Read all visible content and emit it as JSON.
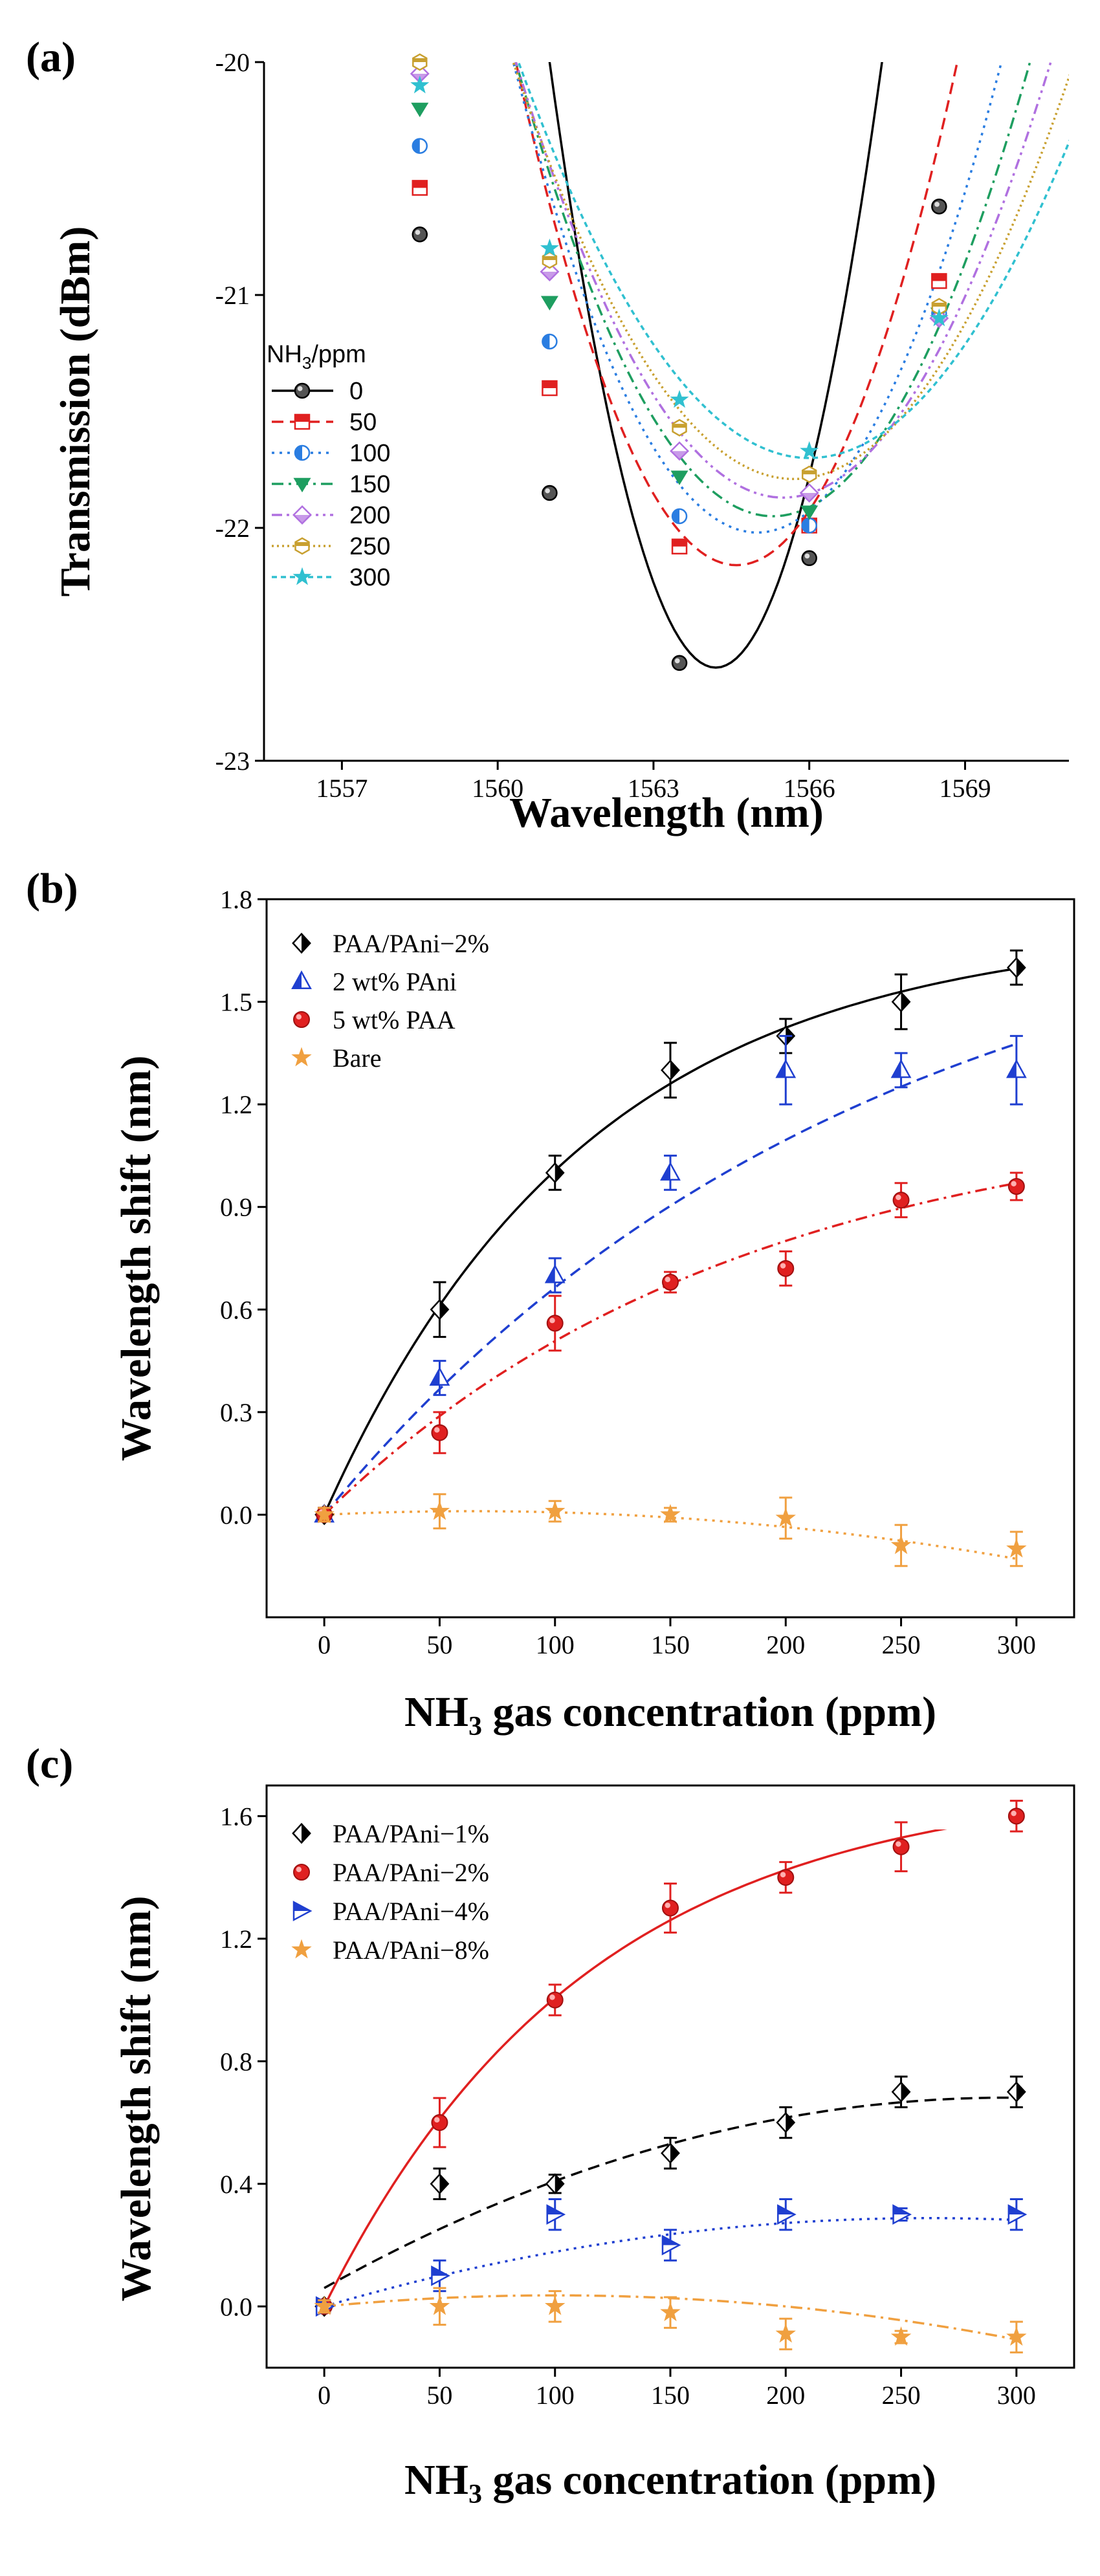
{
  "chart_data": [
    {
      "panel": "(a)",
      "type": "line",
      "xlabel": "Wavelength (nm)",
      "ylabel": "Transmission (dBm)",
      "xlim": [
        1555.5,
        1571
      ],
      "ylim": [
        -23,
        -20
      ],
      "xticks": [
        1557,
        1560,
        1563,
        1566,
        1569
      ],
      "yticks": [
        -20,
        -21,
        -22,
        -23
      ],
      "legend_title": "NH3/ppm",
      "legend_title_main": "NH",
      "legend_title_sub": "3",
      "legend_title_rest": "/ppm",
      "legend_position": "left",
      "series": [
        {
          "name": "0",
          "color": "#000000",
          "marker": "circle",
          "dash": "solid",
          "min_x": 1564.2,
          "min_y": -22.6,
          "width": 6.4,
          "points": [
            [
              1558.5,
              -20.74
            ],
            [
              1561,
              -21.85
            ],
            [
              1563.5,
              -22.58
            ],
            [
              1566,
              -22.13
            ],
            [
              1568.5,
              -20.62
            ]
          ]
        },
        {
          "name": "50",
          "color": "#e02020",
          "marker": "square",
          "dash": "dashed",
          "min_x": 1564.6,
          "min_y": -22.16,
          "width": 8.5,
          "points": [
            [
              1558.5,
              -20.54
            ],
            [
              1561,
              -21.4
            ],
            [
              1563.5,
              -22.08
            ],
            [
              1566,
              -21.99
            ],
            [
              1568.5,
              -20.94
            ]
          ]
        },
        {
          "name": "100",
          "color": "#2a7de1",
          "marker": "halfcircle",
          "dash": "dotted",
          "min_x": 1565.0,
          "min_y": -22.02,
          "width": 9.4,
          "points": [
            [
              1558.5,
              -20.36
            ],
            [
              1561,
              -21.2
            ],
            [
              1563.5,
              -21.95
            ],
            [
              1566,
              -21.99
            ],
            [
              1568.5,
              -21.08
            ]
          ]
        },
        {
          "name": "150",
          "color": "#1e9e60",
          "marker": "tri-down",
          "dash": "dashdot",
          "min_x": 1565.3,
          "min_y": -21.95,
          "width": 9.9,
          "points": [
            [
              1558.5,
              -20.2
            ],
            [
              1561,
              -21.03
            ],
            [
              1563.5,
              -21.78
            ],
            [
              1566,
              -21.93
            ],
            [
              1568.5,
              -21.08
            ]
          ]
        },
        {
          "name": "200",
          "color": "#b070e0",
          "marker": "diamond",
          "dash": "dashdotdot",
          "min_x": 1565.5,
          "min_y": -21.87,
          "width": 10.3,
          "points": [
            [
              1558.5,
              -20.05
            ],
            [
              1561,
              -20.9
            ],
            [
              1563.5,
              -21.67
            ],
            [
              1566,
              -21.85
            ],
            [
              1568.5,
              -21.1
            ]
          ]
        },
        {
          "name": "250",
          "color": "#c8a030",
          "marker": "hexagon",
          "dash": "shortdot",
          "min_x": 1565.7,
          "min_y": -21.79,
          "width": 10.8,
          "points": [
            [
              1558.5,
              -20.0
            ],
            [
              1561,
              -20.85
            ],
            [
              1563.5,
              -21.57
            ],
            [
              1566,
              -21.77
            ],
            [
              1568.5,
              -21.05
            ]
          ]
        },
        {
          "name": "300",
          "color": "#30c0d0",
          "marker": "star",
          "dash": "shortdash",
          "min_x": 1566.0,
          "min_y": -21.7,
          "width": 11.2,
          "points": [
            [
              1558.5,
              -20.1
            ],
            [
              1561,
              -20.8
            ],
            [
              1563.5,
              -21.45
            ],
            [
              1566,
              -21.67
            ],
            [
              1568.5,
              -21.1
            ]
          ]
        }
      ]
    },
    {
      "panel": "(b)",
      "type": "scatter",
      "xlabel_main": "NH",
      "xlabel_sub": "3",
      "xlabel_rest": " gas concentration (ppm)",
      "xlabel": "NH3 gas concentration (ppm)",
      "ylabel": "Wavelength shift (nm)",
      "xlim": [
        -25,
        325
      ],
      "ylim": [
        -0.3,
        1.8
      ],
      "xticks": [
        0,
        50,
        100,
        150,
        200,
        250,
        300
      ],
      "yticks": [
        "0.0",
        "0.3",
        "0.6",
        "0.9",
        "1.2",
        "1.5",
        "1.8"
      ],
      "legend_position": "top-left",
      "series": [
        {
          "name": "PAA/PAni−2%",
          "color": "#000000",
          "marker": "halfdiamond",
          "dash": "solid",
          "x": [
            0,
            50,
            100,
            150,
            200,
            250,
            300
          ],
          "values": [
            0,
            0.6,
            1.0,
            1.3,
            1.4,
            1.5,
            1.6
          ],
          "errors": [
            0.02,
            0.08,
            0.05,
            0.08,
            0.05,
            0.08,
            0.05
          ],
          "fit": {
            "a": 1.72,
            "b": 0.0088
          }
        },
        {
          "name": "2 wt% PAni",
          "color": "#1f3fd0",
          "marker": "halftriangle",
          "dash": "dashed",
          "x": [
            0,
            50,
            100,
            150,
            200,
            250,
            300
          ],
          "values": [
            0,
            0.4,
            0.7,
            1.0,
            1.3,
            1.3,
            1.3
          ],
          "errors": [
            0.02,
            0.05,
            0.05,
            0.05,
            0.1,
            0.05,
            0.1
          ],
          "fit": {
            "a": 1.9,
            "b": 0.0043
          }
        },
        {
          "name": "5 wt% PAA",
          "color": "#e02020",
          "marker": "ball",
          "dash": "dashdot",
          "x": [
            0,
            50,
            100,
            150,
            200,
            250,
            300
          ],
          "values": [
            0,
            0.24,
            0.56,
            0.68,
            0.72,
            0.92,
            0.96
          ],
          "errors": [
            0.02,
            0.06,
            0.08,
            0.03,
            0.05,
            0.05,
            0.04
          ],
          "fit": {
            "a": 1.2,
            "b": 0.0055
          }
        },
        {
          "name": "Bare",
          "color": "#f0a040",
          "marker": "star",
          "dash": "dotted",
          "x": [
            0,
            50,
            100,
            150,
            200,
            250,
            300
          ],
          "values": [
            0,
            0.01,
            0.01,
            0.0,
            -0.01,
            -0.09,
            -0.1
          ],
          "errors": [
            0.02,
            0.05,
            0.03,
            0.02,
            0.06,
            0.06,
            0.05
          ],
          "fit": {
            "poly": [
              0,
              0.00032,
              -2.5e-06
            ]
          }
        }
      ]
    },
    {
      "panel": "(c)",
      "type": "scatter",
      "xlabel": "NH3 gas concentration (ppm)",
      "xlabel_main": "NH",
      "xlabel_sub": "3",
      "xlabel_rest": " gas concentration (ppm)",
      "ylabel": "Wavelength shift (nm)",
      "xlim": [
        -25,
        325
      ],
      "ylim": [
        -0.2,
        1.7
      ],
      "xticks": [
        0,
        50,
        100,
        150,
        200,
        250,
        300
      ],
      "yticks": [
        "0.0",
        "0.4",
        "0.8",
        "1.2",
        "1.6"
      ],
      "legend_position": "top-left",
      "series": [
        {
          "name": "PAA/PAni−1%",
          "color": "#000000",
          "marker": "halfdiamond",
          "dash": "dashed",
          "x": [
            0,
            50,
            100,
            150,
            200,
            250,
            300
          ],
          "values": [
            0,
            0.4,
            0.4,
            0.5,
            0.6,
            0.7,
            0.7
          ],
          "errors": [
            0.02,
            0.05,
            0.03,
            0.05,
            0.05,
            0.05,
            0.05
          ],
          "fit": {
            "poly": [
              0.06,
              0.0042,
              -7.1e-06
            ]
          }
        },
        {
          "name": "PAA/PAni−2%",
          "color": "#e02020",
          "marker": "ball",
          "dash": "solid",
          "x": [
            0,
            50,
            100,
            150,
            200,
            250,
            300
          ],
          "values": [
            0,
            0.6,
            1.0,
            1.3,
            1.4,
            1.5,
            1.6
          ],
          "errors": [
            0.02,
            0.08,
            0.05,
            0.08,
            0.05,
            0.08,
            0.05
          ],
          "fit": {
            "a": 1.72,
            "b": 0.0088
          }
        },
        {
          "name": "PAA/PAni−4%",
          "color": "#1f3fd0",
          "marker": "tri-right",
          "dash": "dotted",
          "x": [
            0,
            50,
            100,
            150,
            200,
            250,
            300
          ],
          "values": [
            0,
            0.1,
            0.3,
            0.2,
            0.3,
            0.3,
            0.3
          ],
          "errors": [
            0.02,
            0.05,
            0.05,
            0.05,
            0.05,
            0.02,
            0.05
          ],
          "fit": {
            "poly": [
              0.0,
              0.0022,
              -4.2e-06
            ]
          }
        },
        {
          "name": "PAA/PAni−8%",
          "color": "#f0a040",
          "marker": "star",
          "dash": "dashdot",
          "x": [
            0,
            50,
            100,
            150,
            200,
            250,
            300
          ],
          "values": [
            0,
            0.0,
            0.0,
            -0.02,
            -0.09,
            -0.1,
            -0.1
          ],
          "errors": [
            0.02,
            0.06,
            0.05,
            0.05,
            0.05,
            0.02,
            0.05
          ],
          "fit": {
            "poly": [
              0,
              0.00072,
              -3.6e-06
            ]
          }
        }
      ]
    }
  ]
}
